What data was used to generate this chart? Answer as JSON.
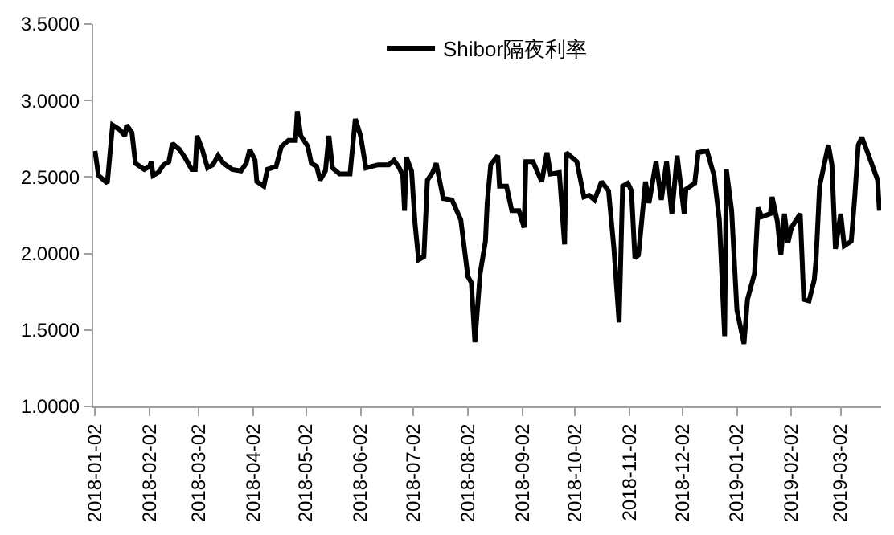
{
  "chart_data": {
    "type": "line",
    "legend": "top",
    "marker": "none",
    "line_style": "solid",
    "xlim": [
      "2018-01-01",
      "2019-03-25"
    ],
    "xticks": [
      "2018-01-02",
      "2018-02-02",
      "2018-03-02",
      "2018-04-02",
      "2018-05-02",
      "2018-06-02",
      "2018-07-02",
      "2018-08-02",
      "2018-09-02",
      "2018-10-02",
      "2018-11-02",
      "2018-12-02",
      "2019-01-02",
      "2019-02-02",
      "2019-03-02"
    ],
    "ylim": [
      1.0,
      3.5
    ],
    "yticks": [
      {
        "value": 1.0,
        "label": "1.0000"
      },
      {
        "value": 1.5,
        "label": "1.5000"
      },
      {
        "value": 2.0,
        "label": "2.0000"
      },
      {
        "value": 2.5,
        "label": "2.5000"
      },
      {
        "value": 3.0,
        "label": "3.0000"
      },
      {
        "value": 3.5,
        "label": "3.5000"
      }
    ],
    "x": [
      "2018-01-02",
      "2018-01-04",
      "2018-01-09",
      "2018-01-12",
      "2018-01-16",
      "2018-01-19",
      "2018-01-20",
      "2018-01-23",
      "2018-01-25",
      "2018-01-30",
      "2018-02-02",
      "2018-02-03",
      "2018-02-04",
      "2018-02-07",
      "2018-02-10",
      "2018-02-13",
      "2018-02-15",
      "2018-02-19",
      "2018-02-22",
      "2018-02-26",
      "2018-02-28",
      "2018-03-01",
      "2018-03-04",
      "2018-03-07",
      "2018-03-10",
      "2018-03-13",
      "2018-03-16",
      "2018-03-21",
      "2018-03-26",
      "2018-03-29",
      "2018-03-31",
      "2018-04-03",
      "2018-04-04",
      "2018-04-08",
      "2018-04-10",
      "2018-04-15",
      "2018-04-18",
      "2018-04-22",
      "2018-04-26",
      "2018-04-27",
      "2018-04-29",
      "2018-05-03",
      "2018-05-05",
      "2018-05-08",
      "2018-05-10",
      "2018-05-13",
      "2018-05-15",
      "2018-05-17",
      "2018-05-21",
      "2018-05-27",
      "2018-05-30",
      "2018-06-02",
      "2018-06-05",
      "2018-06-12",
      "2018-06-18",
      "2018-06-21",
      "2018-06-24",
      "2018-06-26",
      "2018-06-27",
      "2018-06-28",
      "2018-07-01",
      "2018-07-03",
      "2018-07-05",
      "2018-07-08",
      "2018-07-10",
      "2018-07-13",
      "2018-07-15",
      "2018-07-19",
      "2018-07-24",
      "2018-07-29",
      "2018-08-02",
      "2018-08-04",
      "2018-08-06",
      "2018-08-09",
      "2018-08-12",
      "2018-08-13",
      "2018-08-15",
      "2018-08-19",
      "2018-08-20",
      "2018-08-24",
      "2018-08-27",
      "2018-08-31",
      "2018-09-03",
      "2018-09-04",
      "2018-09-08",
      "2018-09-13",
      "2018-09-16",
      "2018-09-18",
      "2018-09-23",
      "2018-09-26",
      "2018-09-27",
      "2018-10-03",
      "2018-10-07",
      "2018-10-10",
      "2018-10-13",
      "2018-10-17",
      "2018-10-21",
      "2018-10-24",
      "2018-10-27",
      "2018-10-29",
      "2018-11-01",
      "2018-11-03",
      "2018-11-05",
      "2018-11-07",
      "2018-11-11",
      "2018-11-13",
      "2018-11-17",
      "2018-11-20",
      "2018-11-23",
      "2018-11-26",
      "2018-11-29",
      "2018-12-03",
      "2018-12-04",
      "2018-12-09",
      "2018-12-11",
      "2018-12-16",
      "2018-12-20",
      "2018-12-23",
      "2018-12-26",
      "2018-12-27",
      "2018-12-30",
      "2019-01-02",
      "2019-01-06",
      "2019-01-08",
      "2019-01-12",
      "2019-01-14",
      "2019-01-16",
      "2019-01-21",
      "2019-01-22",
      "2019-01-25",
      "2019-01-27",
      "2019-01-29",
      "2019-01-31",
      "2019-02-02",
      "2019-02-07",
      "2019-02-09",
      "2019-02-12",
      "2019-02-15",
      "2019-02-16",
      "2019-02-18",
      "2019-02-23",
      "2019-02-25",
      "2019-02-27",
      "2019-03-02",
      "2019-03-04",
      "2019-03-08",
      "2019-03-10",
      "2019-03-12",
      "2019-03-14",
      "2019-03-17",
      "2019-03-23",
      "2019-03-24"
    ],
    "series": [
      {
        "name": "Shibor隔夜利率",
        "color": "#000000",
        "values": [
          2.67,
          2.51,
          2.46,
          2.84,
          2.81,
          2.77,
          2.84,
          2.79,
          2.59,
          2.55,
          2.57,
          2.6,
          2.51,
          2.53,
          2.58,
          2.6,
          2.72,
          2.68,
          2.63,
          2.55,
          2.55,
          2.77,
          2.68,
          2.56,
          2.58,
          2.64,
          2.59,
          2.55,
          2.54,
          2.59,
          2.68,
          2.61,
          2.47,
          2.44,
          2.55,
          2.57,
          2.7,
          2.74,
          2.74,
          2.93,
          2.77,
          2.7,
          2.59,
          2.57,
          2.48,
          2.54,
          2.77,
          2.56,
          2.52,
          2.52,
          2.88,
          2.77,
          2.56,
          2.58,
          2.58,
          2.61,
          2.56,
          2.51,
          2.28,
          2.63,
          2.54,
          2.19,
          1.96,
          1.98,
          2.48,
          2.53,
          2.59,
          2.36,
          2.35,
          2.22,
          1.85,
          1.81,
          1.42,
          1.87,
          2.08,
          2.33,
          2.58,
          2.64,
          2.44,
          2.44,
          2.28,
          2.28,
          2.17,
          2.6,
          2.6,
          2.47,
          2.66,
          2.52,
          2.53,
          2.06,
          2.66,
          2.6,
          2.37,
          2.38,
          2.35,
          2.47,
          2.41,
          2.04,
          1.55,
          2.44,
          2.46,
          2.41,
          1.97,
          1.99,
          2.47,
          2.33,
          2.6,
          2.35,
          2.6,
          2.26,
          2.64,
          2.26,
          2.42,
          2.46,
          2.66,
          2.67,
          2.51,
          2.22,
          1.46,
          2.55,
          2.28,
          1.63,
          1.41,
          1.7,
          1.87,
          2.3,
          2.24,
          2.26,
          2.37,
          2.21,
          1.99,
          2.26,
          2.07,
          2.17,
          2.26,
          1.7,
          1.69,
          1.83,
          1.96,
          2.44,
          2.71,
          2.58,
          2.03,
          2.26,
          2.05,
          2.08,
          2.37,
          2.71,
          2.76,
          2.67,
          2.48,
          2.28
        ]
      }
    ]
  }
}
